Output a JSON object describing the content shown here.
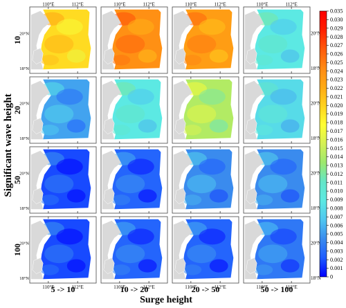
{
  "chart_data": {
    "type": "heatmap",
    "title": "",
    "xlabel": "Surge height",
    "ylabel": "Significant wave height",
    "columns": [
      "5 -> 10",
      "10 -> 20",
      "20 -> 50",
      "50 -> 100"
    ],
    "rows": [
      "10",
      "20",
      "50",
      "100"
    ],
    "values": [
      [
        0.022,
        0.027,
        0.026,
        0.01
      ],
      [
        0.006,
        0.01,
        0.016,
        0.009
      ],
      [
        0.002,
        0.003,
        0.005,
        0.005
      ],
      [
        0.002,
        0.003,
        0.003,
        0.004
      ]
    ],
    "map_x_ticks": [
      "110°E",
      "112°E"
    ],
    "map_y_ticks": [
      "20°N",
      "18°N"
    ],
    "colorbar": {
      "min": 0,
      "max": 0.035,
      "tick_labels": [
        "0.035",
        "0.030",
        "0.029",
        "0.028",
        "0.027",
        "0.026",
        "0.025",
        "0.024",
        "0.023",
        "0.022",
        "0.021",
        "0.020",
        "0.019",
        "0.018",
        "0.017",
        "0.016",
        "0.015",
        "0.014",
        "0.013",
        "0.012",
        "0.011",
        "0.010",
        "0.009",
        "0.008",
        "0.007",
        "0.006",
        "0.005",
        "0.004",
        "0.003",
        "0.002",
        "0.001",
        "0"
      ],
      "colors": [
        "#0000ff",
        "#1e5cff",
        "#3a8bee",
        "#4fc6f0",
        "#5ce9e3",
        "#63e6c8",
        "#9be86e",
        "#d4f055",
        "#ffff33",
        "#ffd21e",
        "#ffaa14",
        "#ff8a14",
        "#ff5a0a",
        "#ff2000",
        "#ff0000"
      ]
    },
    "land_color": "#d9d9d9",
    "grid": false
  }
}
